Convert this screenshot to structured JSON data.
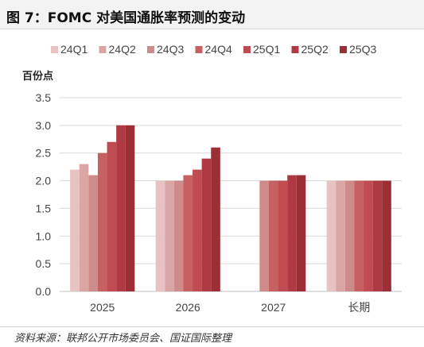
{
  "header": {
    "title": "图 7：FOMC 对美国通胀率预测的变动"
  },
  "footer": {
    "source": "资料来源：联邦公开市场委员会、国证国际整理"
  },
  "chart_data": {
    "type": "bar",
    "title": "图 7：FOMC 对美国通胀率预测的变动",
    "ylabel": "百份点",
    "xlabel": "",
    "ylim": [
      0,
      3.5
    ],
    "yticks": [
      "0.0",
      "0.5",
      "1.0",
      "1.5",
      "2.0",
      "2.5",
      "3.0",
      "3.5"
    ],
    "grid": true,
    "legend_position": "top",
    "categories": [
      "2025",
      "2026",
      "2027",
      "长期"
    ],
    "series": [
      {
        "name": "24Q1",
        "color": "#e7c3c3",
        "values": [
          2.2,
          2.0,
          null,
          2.0
        ]
      },
      {
        "name": "24Q2",
        "color": "#d9a5a5",
        "values": [
          2.3,
          2.0,
          null,
          2.0
        ]
      },
      {
        "name": "24Q3",
        "color": "#cf8a8a",
        "values": [
          2.1,
          2.0,
          2.0,
          2.0
        ]
      },
      {
        "name": "24Q4",
        "color": "#c76060",
        "values": [
          2.5,
          2.1,
          2.0,
          2.0
        ]
      },
      {
        "name": "25Q1",
        "color": "#c04b50",
        "values": [
          2.7,
          2.2,
          2.0,
          2.0
        ]
      },
      {
        "name": "25Q2",
        "color": "#b03a44",
        "values": [
          3.0,
          2.4,
          2.1,
          2.0
        ]
      },
      {
        "name": "25Q3",
        "color": "#9c2f36",
        "values": [
          3.0,
          2.6,
          2.1,
          2.0
        ]
      }
    ]
  }
}
